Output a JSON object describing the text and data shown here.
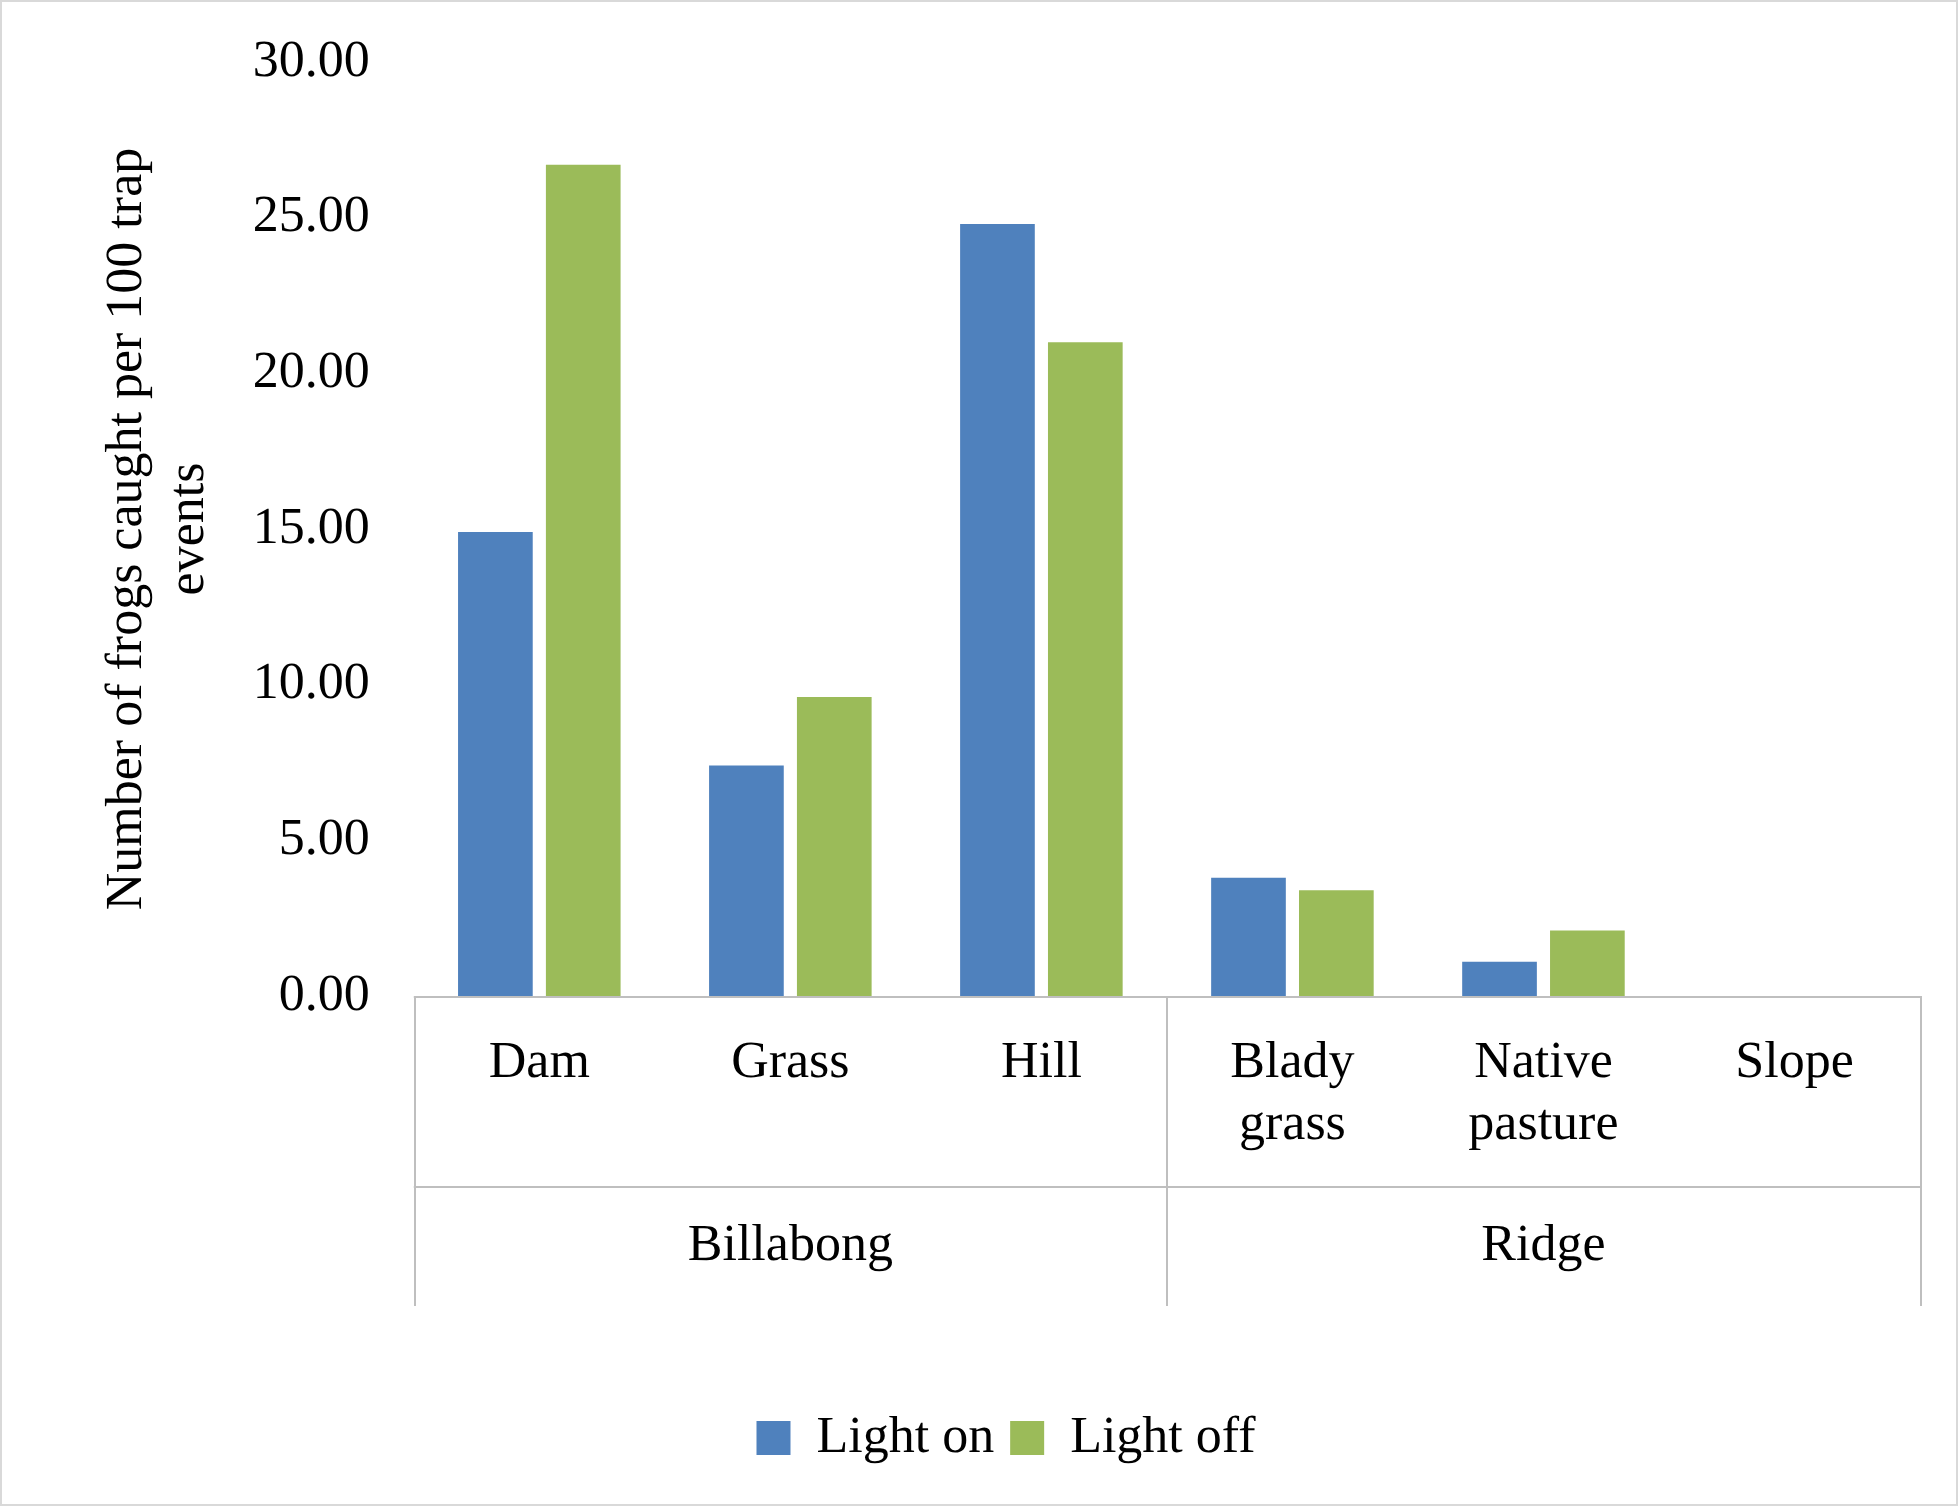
{
  "chart_data": {
    "type": "bar",
    "ylabel": "Number of frogs caught per 100 trap events",
    "categories": [
      "Dam",
      "Grass",
      "Hill",
      "Blady grass",
      "Native pasture",
      "Slope"
    ],
    "series": [
      {
        "name": "Light on",
        "color": "#4f81bd",
        "values": [
          14.9,
          7.4,
          24.8,
          3.8,
          1.1,
          0
        ]
      },
      {
        "name": "Light off",
        "color": "#9bbb59",
        "values": [
          26.7,
          9.6,
          21.0,
          3.4,
          2.1,
          0
        ]
      }
    ],
    "ylim": [
      0,
      30
    ],
    "yticks": [
      {
        "value": 0,
        "label": "0.00"
      },
      {
        "value": 5,
        "label": "5.00"
      },
      {
        "value": 10,
        "label": "10.00"
      },
      {
        "value": 15,
        "label": "15.00"
      },
      {
        "value": 20,
        "label": "20.00"
      },
      {
        "value": 25,
        "label": "25.00"
      },
      {
        "value": 30,
        "label": "30.00"
      }
    ],
    "annotations": [
      "Billabong",
      "Ridge"
    ],
    "grid": false,
    "legend": "bottom"
  }
}
